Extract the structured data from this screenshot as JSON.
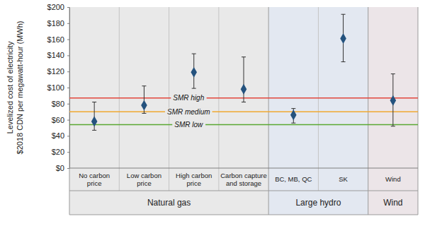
{
  "chart_data": {
    "type": "dot",
    "marker": "diamond",
    "color": "#24527e",
    "grid": false,
    "y_label": [
      "Levelized cost of electricity",
      "$2018 CDN per megawatt-hour (MWh)"
    ],
    "groups": [
      {
        "name": "Natural gas",
        "color": "#e9e9e9",
        "categories": [
          "No carbon price",
          "Low carbon price",
          "High carbon price",
          "Carbon capture and storage"
        ]
      },
      {
        "name": "Large hydro",
        "color": "#e3e8f1",
        "categories": [
          "BC, MB, QC",
          "SK"
        ]
      },
      {
        "name": "Wind",
        "color": "#ece5e8",
        "categories": [
          "Wind"
        ]
      }
    ],
    "values": [
      58,
      78,
      119,
      98,
      66,
      161,
      84
    ],
    "lower": [
      47,
      68,
      99,
      82,
      56,
      132,
      52
    ],
    "upper": [
      82,
      102,
      142,
      138,
      74,
      191,
      117
    ],
    "reference_lines": [
      {
        "label": "SMR high",
        "value": 87,
        "color": "#e2463c"
      },
      {
        "label": "SMR medium",
        "value": 70,
        "color": "#f0a830"
      },
      {
        "label": "SMR low",
        "value": 54,
        "color": "#5aa832"
      }
    ],
    "ylim": [
      0,
      200
    ],
    "yticks": [
      {
        "value": 0,
        "label": "$0"
      },
      {
        "value": 20,
        "label": "$20"
      },
      {
        "value": 40,
        "label": "$40"
      },
      {
        "value": 60,
        "label": "$60"
      },
      {
        "value": 80,
        "label": "$80"
      },
      {
        "value": 100,
        "label": "$100"
      },
      {
        "value": 120,
        "label": "$120"
      },
      {
        "value": 140,
        "label": "$140"
      },
      {
        "value": 160,
        "label": "$160"
      },
      {
        "value": 180,
        "label": "$180"
      },
      {
        "value": 200,
        "label": "$200"
      }
    ]
  }
}
